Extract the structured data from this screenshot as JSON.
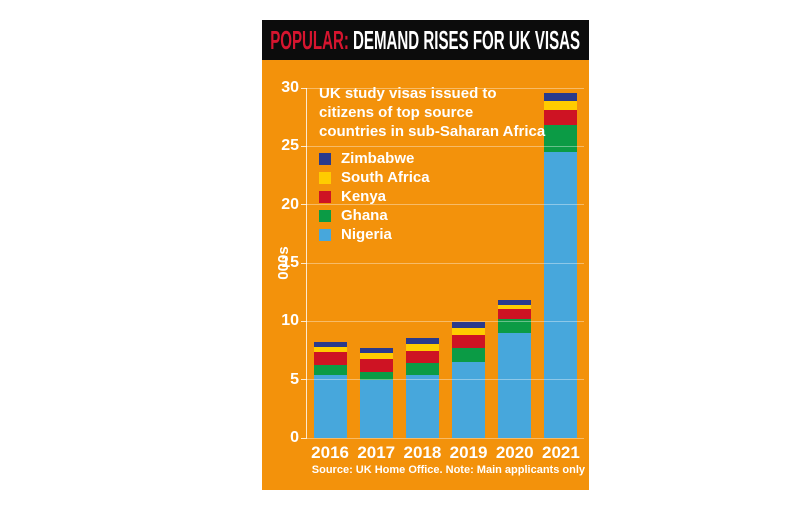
{
  "header": {
    "kicker": "POPULAR:",
    "title": "DEMAND RISES FOR UK VISAS"
  },
  "colors": {
    "page_bg": "#FFFFFF",
    "panel_bg": "#F3920B",
    "header_bg": "#0C0C0C",
    "kicker_red": "#D6152F",
    "text_white": "#FFFFFF",
    "gridline": "rgba(255,255,255,0.38)"
  },
  "chart_data": {
    "type": "bar",
    "stacked": true,
    "title": "UK study visas issued to citizens of top source countries in sub-Saharan Africa",
    "title_lines": [
      "UK study visas issued to",
      "citizens of top source",
      "countries in sub-Saharan Africa"
    ],
    "ylabel": "000s",
    "ylim": [
      0,
      30
    ],
    "yticks": [
      0,
      5,
      10,
      15,
      20,
      25,
      30
    ],
    "grid": true,
    "legend_position": "inside-top-left",
    "categories": [
      "2016",
      "2017",
      "2018",
      "2019",
      "2020",
      "2021"
    ],
    "series": [
      {
        "name": "Zimbabwe",
        "color": "#2A3A8C",
        "values": [
          0.4,
          0.45,
          0.45,
          0.5,
          0.45,
          0.65
        ]
      },
      {
        "name": "South Africa",
        "color": "#FFCC00",
        "values": [
          0.45,
          0.45,
          0.65,
          0.65,
          0.35,
          0.8
        ]
      },
      {
        "name": "Kenya",
        "color": "#CE1323",
        "values": [
          1.05,
          1.1,
          1.05,
          1.05,
          0.85,
          1.25
        ]
      },
      {
        "name": "Ghana",
        "color": "#0B9B45",
        "values": [
          0.9,
          0.7,
          1.0,
          1.25,
          1.2,
          2.35
        ]
      },
      {
        "name": "Nigeria",
        "color": "#47A7DC",
        "values": [
          5.4,
          5.0,
          5.4,
          6.5,
          9.0,
          24.5
        ]
      }
    ],
    "source_note": "Source: UK Home Office. Note: Main applicants only"
  }
}
